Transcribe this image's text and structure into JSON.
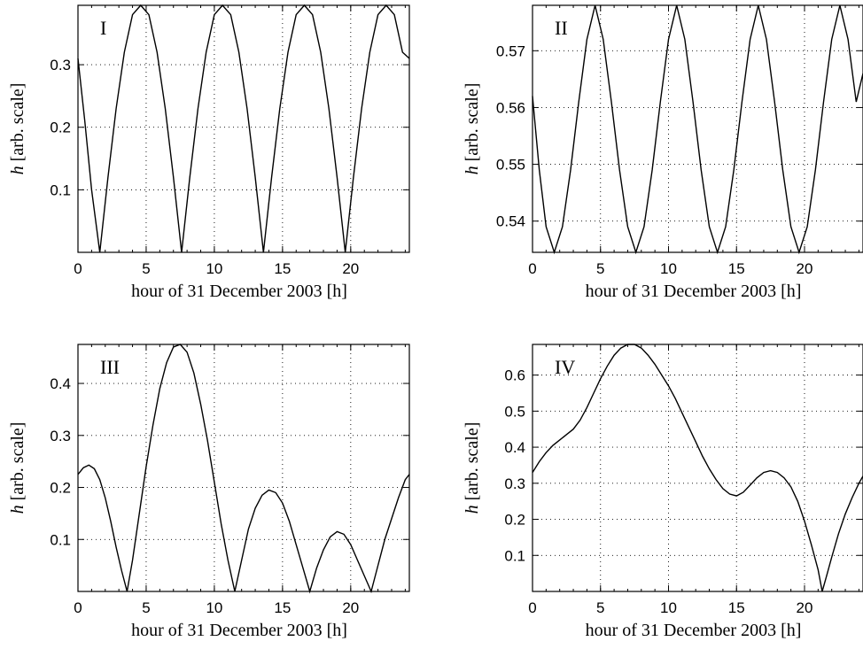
{
  "chart_data": [
    {
      "type": "line",
      "panel_label": "I",
      "xlabel": "hour of 31 December 2003 [h]",
      "ylabel_italic": "h",
      "ylabel_rest": "[arb. scale]",
      "xlim": [
        0,
        24.3
      ],
      "ylim": [
        0,
        0.395
      ],
      "xticks": [
        0,
        5,
        10,
        15,
        20
      ],
      "xtick_labels": [
        "0",
        "5",
        "10",
        "15",
        "20"
      ],
      "yticks": [
        0.1,
        0.2,
        0.3
      ],
      "ytick_labels": [
        "0.1",
        "0.2",
        "0.3"
      ],
      "grid": true,
      "series": [
        {
          "x": [
            0,
            0.5,
            1.0,
            1.6,
            2.2,
            2.8,
            3.4,
            4.0,
            4.6,
            5.2,
            5.8,
            6.4,
            7.0,
            7.6,
            8.2,
            8.8,
            9.4,
            10.0,
            10.6,
            11.2,
            11.8,
            12.4,
            13.0,
            13.6,
            14.2,
            14.8,
            15.4,
            16.0,
            16.6,
            17.2,
            17.8,
            18.4,
            19.0,
            19.6,
            20.2,
            20.8,
            21.4,
            22.0,
            22.6,
            23.2,
            23.8,
            24.3
          ],
          "y": [
            0.31,
            0.21,
            0.1,
            0.0,
            0.12,
            0.23,
            0.32,
            0.38,
            0.395,
            0.38,
            0.32,
            0.23,
            0.12,
            0.0,
            0.12,
            0.23,
            0.32,
            0.38,
            0.395,
            0.38,
            0.32,
            0.23,
            0.12,
            0.0,
            0.12,
            0.23,
            0.32,
            0.38,
            0.395,
            0.38,
            0.32,
            0.23,
            0.12,
            0.0,
            0.12,
            0.23,
            0.32,
            0.38,
            0.395,
            0.38,
            0.32,
            0.31
          ]
        }
      ]
    },
    {
      "type": "line",
      "panel_label": "II",
      "xlabel": "hour of 31 December 2003 [h]",
      "ylabel_italic": "h",
      "ylabel_rest": "[arb. scale]",
      "xlim": [
        0,
        24.3
      ],
      "ylim": [
        0.5345,
        0.578
      ],
      "xticks": [
        0,
        5,
        10,
        15,
        20
      ],
      "xtick_labels": [
        "0",
        "5",
        "10",
        "15",
        "20"
      ],
      "yticks": [
        0.54,
        0.55,
        0.56,
        0.57
      ],
      "ytick_labels": [
        "0.54",
        "0.55",
        "0.56",
        "0.57"
      ],
      "grid": true,
      "series": [
        {
          "x": [
            0,
            0.5,
            1.0,
            1.6,
            2.2,
            2.8,
            3.4,
            4.0,
            4.6,
            5.2,
            5.8,
            6.4,
            7.0,
            7.6,
            8.2,
            8.8,
            9.4,
            10.0,
            10.6,
            11.2,
            11.8,
            12.4,
            13.0,
            13.6,
            14.2,
            14.8,
            15.4,
            16.0,
            16.6,
            17.2,
            17.8,
            18.4,
            19.0,
            19.6,
            20.2,
            20.8,
            21.4,
            22.0,
            22.6,
            23.2,
            23.8,
            24.3
          ],
          "y": [
            0.562,
            0.549,
            0.539,
            0.5345,
            0.539,
            0.549,
            0.561,
            0.572,
            0.578,
            0.572,
            0.561,
            0.549,
            0.539,
            0.5345,
            0.539,
            0.549,
            0.561,
            0.572,
            0.578,
            0.572,
            0.561,
            0.549,
            0.539,
            0.5345,
            0.539,
            0.549,
            0.561,
            0.572,
            0.578,
            0.572,
            0.561,
            0.549,
            0.539,
            0.5345,
            0.539,
            0.549,
            0.561,
            0.572,
            0.578,
            0.572,
            0.561,
            0.566
          ]
        }
      ]
    },
    {
      "type": "line",
      "panel_label": "III",
      "xlabel": "hour of 31 December 2003 [h]",
      "ylabel_italic": "h",
      "ylabel_rest": "[arb. scale]",
      "xlim": [
        0,
        24.3
      ],
      "ylim": [
        0,
        0.475
      ],
      "xticks": [
        0,
        5,
        10,
        15,
        20
      ],
      "xtick_labels": [
        "0",
        "5",
        "10",
        "15",
        "20"
      ],
      "yticks": [
        0.1,
        0.2,
        0.3,
        0.4
      ],
      "ytick_labels": [
        "0.1",
        "0.2",
        "0.3",
        "0.4"
      ],
      "grid": true,
      "series": [
        {
          "x": [
            0,
            0.4,
            0.8,
            1.2,
            1.6,
            2.0,
            2.4,
            2.8,
            3.2,
            3.6,
            4.0,
            4.5,
            5.0,
            5.5,
            6.0,
            6.5,
            7.0,
            7.5,
            8.0,
            8.5,
            9.0,
            9.5,
            10.0,
            10.5,
            11.0,
            11.5,
            12.0,
            12.5,
            13.0,
            13.5,
            14.0,
            14.5,
            15.0,
            15.5,
            16.0,
            16.5,
            17.0,
            17.5,
            18.0,
            18.5,
            19.0,
            19.5,
            20.0,
            20.5,
            21.0,
            21.5,
            22.0,
            22.5,
            23.0,
            23.5,
            24.0,
            24.3
          ],
          "y": [
            0.225,
            0.238,
            0.243,
            0.236,
            0.215,
            0.18,
            0.135,
            0.085,
            0.04,
            0.0,
            0.06,
            0.15,
            0.24,
            0.32,
            0.39,
            0.44,
            0.47,
            0.475,
            0.46,
            0.42,
            0.36,
            0.29,
            0.21,
            0.13,
            0.06,
            0.0,
            0.06,
            0.12,
            0.16,
            0.185,
            0.195,
            0.19,
            0.17,
            0.135,
            0.09,
            0.045,
            0.0,
            0.045,
            0.08,
            0.105,
            0.115,
            0.11,
            0.09,
            0.06,
            0.03,
            0.0,
            0.05,
            0.1,
            0.14,
            0.18,
            0.215,
            0.225
          ]
        }
      ]
    },
    {
      "type": "line",
      "panel_label": "IV",
      "xlabel": "hour of 31 December 2003 [h]",
      "ylabel_italic": "h",
      "ylabel_rest": "[arb. scale]",
      "xlim": [
        0,
        24.3
      ],
      "ylim": [
        0,
        0.685
      ],
      "xticks": [
        0,
        5,
        10,
        15,
        20
      ],
      "xtick_labels": [
        "0",
        "5",
        "10",
        "15",
        "20"
      ],
      "yticks": [
        0.1,
        0.2,
        0.3,
        0.4,
        0.5,
        0.6
      ],
      "ytick_labels": [
        "0.1",
        "0.2",
        "0.3",
        "0.4",
        "0.5",
        "0.6"
      ],
      "grid": true,
      "series": [
        {
          "x": [
            0,
            0.5,
            1.0,
            1.5,
            2.0,
            2.5,
            3.0,
            3.5,
            4.0,
            4.5,
            5.0,
            5.5,
            6.0,
            6.5,
            7.0,
            7.5,
            8.0,
            8.5,
            9.0,
            9.5,
            10.0,
            10.5,
            11.0,
            11.5,
            12.0,
            12.5,
            13.0,
            13.5,
            14.0,
            14.5,
            15.0,
            15.5,
            16.0,
            16.5,
            17.0,
            17.5,
            18.0,
            18.5,
            19.0,
            19.5,
            20.0,
            20.5,
            21.0,
            21.3,
            21.6,
            22.0,
            22.5,
            23.0,
            23.5,
            24.0,
            24.3
          ],
          "y": [
            0.33,
            0.36,
            0.385,
            0.405,
            0.42,
            0.435,
            0.45,
            0.475,
            0.51,
            0.55,
            0.59,
            0.625,
            0.655,
            0.675,
            0.685,
            0.685,
            0.675,
            0.655,
            0.63,
            0.6,
            0.57,
            0.535,
            0.495,
            0.455,
            0.415,
            0.375,
            0.34,
            0.31,
            0.285,
            0.27,
            0.265,
            0.275,
            0.295,
            0.315,
            0.33,
            0.335,
            0.33,
            0.315,
            0.29,
            0.25,
            0.195,
            0.13,
            0.06,
            0.0,
            0.04,
            0.095,
            0.16,
            0.215,
            0.26,
            0.3,
            0.32
          ]
        }
      ]
    }
  ]
}
